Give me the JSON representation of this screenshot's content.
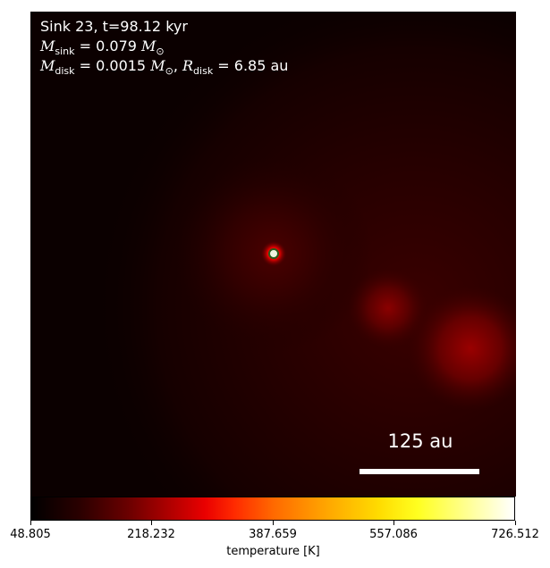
{
  "panel": {
    "title_line": "Sink 23, t=98.12 kyr",
    "mass_line": {
      "symbol": "M",
      "subscript": "sink",
      "value": "= 0.079",
      "unit_symbol": "M",
      "unit_subscript": "⊙"
    },
    "disk_line": {
      "mass_symbol": "M",
      "mass_subscript": "disk",
      "mass_value": "= 0.0015",
      "unit_symbol": "M",
      "unit_subscript": "⊙",
      "separator": ",",
      "radius_symbol": "R",
      "radius_subscript": "disk",
      "radius_value": "= 6.85 au"
    },
    "scale_bar_label": "125 au"
  },
  "colorbar": {
    "label": "temperature [K]",
    "ticks": [
      "48.805",
      "218.232",
      "387.659",
      "557.086",
      "726.512"
    ],
    "colormap": "hot"
  },
  "colors": {
    "background_dark": "#0b0000",
    "sink_marker_fill": "#f0f4e0",
    "sink_marker_edge": "#2a5a1a",
    "sink_glow": "#ff1a00"
  }
}
